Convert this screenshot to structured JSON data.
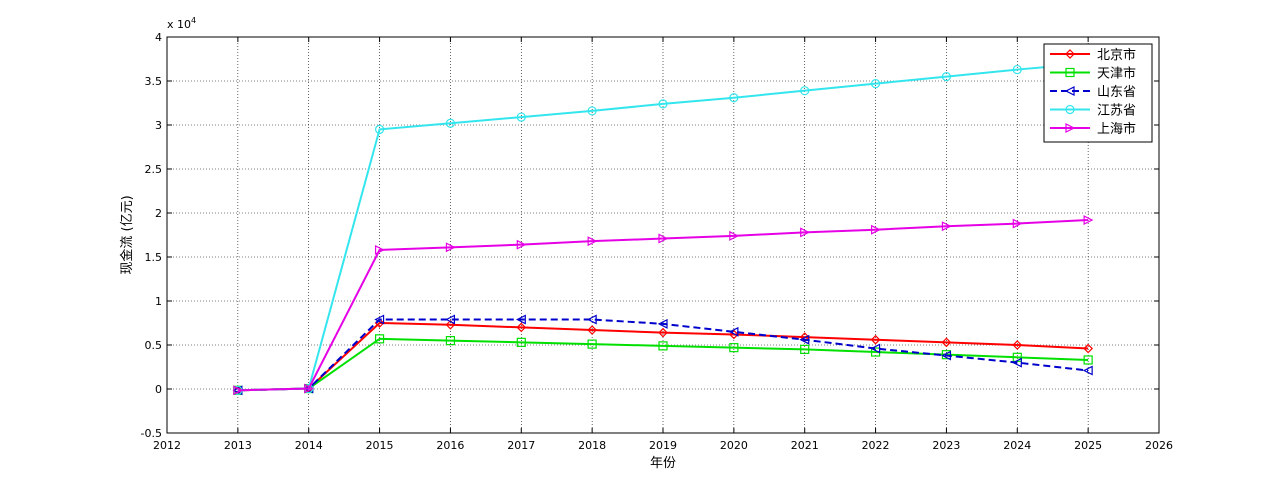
{
  "chart_data": {
    "type": "line",
    "xlabel": "年份",
    "ylabel": "现金流 (亿元)",
    "exponent_label": "x 10",
    "exponent_power": "4",
    "xlim": [
      2012,
      2026
    ],
    "ylim": [
      -5000,
      40000
    ],
    "x_ticks": [
      "2012",
      "2013",
      "2014",
      "2015",
      "2016",
      "2017",
      "2018",
      "2019",
      "2020",
      "2021",
      "2022",
      "2023",
      "2024",
      "2025",
      "2026"
    ],
    "y_ticks": [
      "-0.5",
      "0",
      "0.5",
      "1",
      "1.5",
      "2",
      "2.5",
      "3",
      "3.5",
      "4"
    ],
    "grid": true,
    "legend_position": "top-right",
    "x": [
      2013,
      2014,
      2015,
      2016,
      2017,
      2018,
      2019,
      2020,
      2021,
      2022,
      2023,
      2024,
      2025
    ],
    "series": [
      {
        "name": "北京市",
        "color": "#ff0000",
        "marker": "diamond",
        "dash": "solid",
        "values": [
          -150,
          50,
          7500,
          7300,
          7000,
          6700,
          6400,
          6200,
          5900,
          5600,
          5300,
          5000,
          4600
        ]
      },
      {
        "name": "天津市",
        "color": "#00e000",
        "marker": "square",
        "dash": "solid",
        "values": [
          -150,
          50,
          5700,
          5500,
          5300,
          5100,
          4900,
          4700,
          4500,
          4200,
          3900,
          3600,
          3300
        ]
      },
      {
        "name": "山东省",
        "color": "#0000cc",
        "marker": "triangle-left",
        "dash": "dashed",
        "values": [
          -150,
          50,
          7900,
          7900,
          7900,
          7900,
          7400,
          6500,
          5600,
          4600,
          3800,
          3000,
          2100
        ]
      },
      {
        "name": "江苏省",
        "color": "#33e6ee",
        "marker": "circle",
        "dash": "solid",
        "values": [
          -150,
          50,
          29500,
          30200,
          30900,
          31600,
          32400,
          33100,
          33900,
          34700,
          35500,
          36300,
          37000
        ]
      },
      {
        "name": "上海市",
        "color": "#e600e6",
        "marker": "triangle-right",
        "dash": "solid",
        "values": [
          -150,
          50,
          15800,
          16100,
          16400,
          16800,
          17100,
          17400,
          17800,
          18100,
          18500,
          18800,
          19200
        ]
      }
    ]
  }
}
